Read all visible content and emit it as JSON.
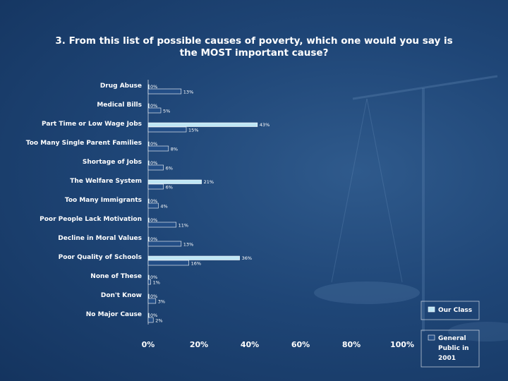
{
  "chart_data": {
    "type": "bar",
    "orientation": "horizontal",
    "title": "3. From this list of possible causes of poverty, which one would you say is the MOST important cause?",
    "title_lines": [
      "3. From this list of possible causes of poverty, which one would you say is",
      "the MOST important cause?"
    ],
    "categories": [
      "Drug Abuse",
      "Medical Bills",
      "Part Time or Low Wage Jobs",
      "Too Many Single Parent Families",
      "Shortage of Jobs",
      "The Welfare System",
      "Too Many Immigrants",
      "Poor People Lack Motivation",
      "Decline in Moral Values",
      "Poor Quality of Schools",
      "None of These",
      "Don't Know",
      "No Major Cause"
    ],
    "series": [
      {
        "name": "Our Class",
        "color": "#bfe6f5",
        "values": [
          0,
          0,
          43,
          0,
          0,
          21,
          0,
          0,
          0,
          36,
          0,
          0,
          0
        ],
        "labels": [
          "0%",
          "0%",
          "43%",
          "0%",
          "0%",
          "21%",
          "0%",
          "0%",
          "0%",
          "36%",
          "0%",
          "0%",
          "0%"
        ]
      },
      {
        "name": "General Public in 2001",
        "color": "#234e86",
        "values": [
          13,
          5,
          15,
          8,
          6,
          6,
          4,
          11,
          13,
          16,
          1,
          3,
          2
        ],
        "labels": [
          "13%",
          "5%",
          "15%",
          "8%",
          "6%",
          "6%",
          "4%",
          "11%",
          "13%",
          "16%",
          "1%",
          "3%",
          "2%"
        ]
      }
    ],
    "xlim": [
      0,
      100
    ],
    "xticks": [
      "0%",
      "20%",
      "40%",
      "60%",
      "80%",
      "100%"
    ],
    "xlabel": "",
    "ylabel": "",
    "grid": false,
    "legend": {
      "position": "bottom-right",
      "entries": [
        "Our Class",
        "General Public in 2001"
      ],
      "general_lines": [
        "General",
        "Public in",
        "2001"
      ]
    },
    "colors": {
      "background": "#1f4677",
      "bar_border": "#ffffff",
      "text": "#ffffff"
    }
  }
}
